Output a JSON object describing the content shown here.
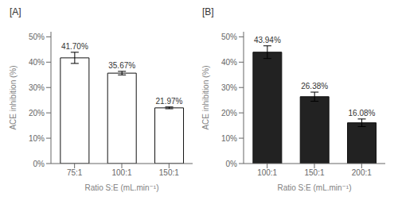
{
  "chart_data": [
    {
      "type": "bar",
      "title": "[A]",
      "categories": [
        "75:1",
        "100:1",
        "150:1"
      ],
      "values": [
        41.7,
        35.67,
        21.97
      ],
      "errors": [
        2.2,
        0.7,
        0.35
      ],
      "color": "white",
      "data_labels": true,
      "value_labels": [
        "41.70%",
        "35.67%",
        "21.97%"
      ],
      "xlabel": "Ratio S:E (mL.min⁻¹)",
      "ylabel": "ACE inhibition (%)",
      "ylim": [
        0,
        52
      ],
      "yticks": [
        {
          "value": 0,
          "label": "0%"
        },
        {
          "value": 10,
          "label": "10%"
        },
        {
          "value": 20,
          "label": "20%"
        },
        {
          "value": 30,
          "label": "30%"
        },
        {
          "value": 40,
          "label": "40%"
        },
        {
          "value": 50,
          "label": "50%"
        }
      ]
    },
    {
      "type": "bar",
      "title": "[B]",
      "categories": [
        "100:1",
        "150:1",
        "200:1"
      ],
      "values": [
        43.94,
        26.38,
        16.08
      ],
      "errors": [
        2.5,
        1.8,
        1.5
      ],
      "color": "#222222",
      "data_labels": true,
      "value_labels": [
        "43.94%",
        "26.38%",
        "16.08%"
      ],
      "xlabel": "Ratio S:E (mL.min⁻¹)",
      "ylabel": "ACE inhibition (%)",
      "ylim": [
        0,
        52
      ],
      "yticks": [
        {
          "value": 0,
          "label": "0%"
        },
        {
          "value": 10,
          "label": "10%"
        },
        {
          "value": 20,
          "label": "20%"
        },
        {
          "value": 30,
          "label": "30%"
        },
        {
          "value": 40,
          "label": "40%"
        },
        {
          "value": 50,
          "label": "50%"
        }
      ]
    }
  ]
}
